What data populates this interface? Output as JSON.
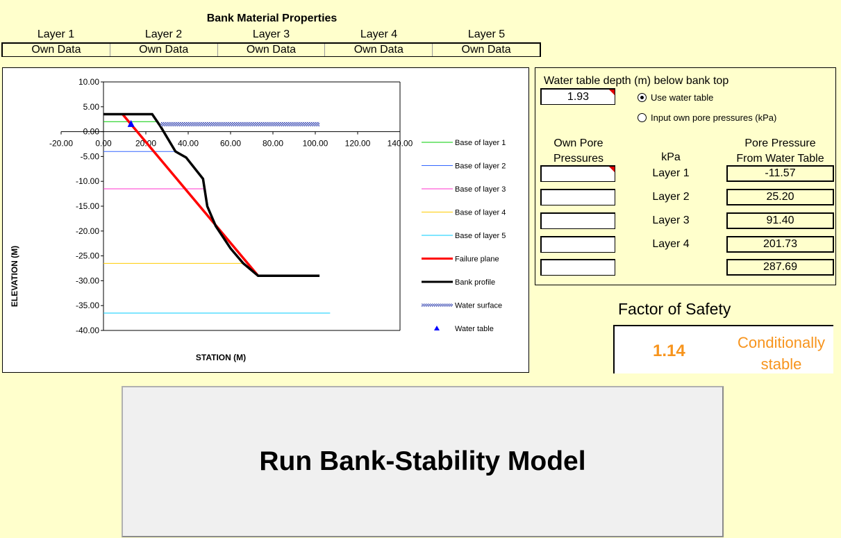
{
  "bank_material": {
    "title": "Bank Material Properties",
    "layers": [
      {
        "name": "Layer 1",
        "value": "Own Data"
      },
      {
        "name": "Layer 2",
        "value": "Own Data"
      },
      {
        "name": "Layer 3",
        "value": "Own Data"
      },
      {
        "name": "Layer 4",
        "value": "Own Data"
      },
      {
        "name": "Layer 5",
        "value": "Own Data"
      }
    ]
  },
  "water_table": {
    "label": "Water table depth (m) below bank top",
    "depth_value": "1.93",
    "options": [
      {
        "label": "Use water table",
        "selected": true
      },
      {
        "label": "Input own pore pressures (kPa)",
        "selected": false
      }
    ],
    "own_pore_header": [
      "Own Pore",
      "Pressures"
    ],
    "kpa_header": "kPa",
    "pore_from_wt_header": [
      "Pore Pressure",
      "From Water Table"
    ],
    "rows": [
      {
        "layer": "Layer 1",
        "own": "",
        "from_wt": "-11.57"
      },
      {
        "layer": "Layer 2",
        "own": "",
        "from_wt": "25.20"
      },
      {
        "layer": "Layer 3",
        "own": "",
        "from_wt": "91.40"
      },
      {
        "layer": "Layer 4",
        "own": "",
        "from_wt": "201.73"
      },
      {
        "layer": "",
        "own": "",
        "from_wt": "287.69"
      }
    ]
  },
  "factor_of_safety": {
    "title": "Factor of Safety",
    "value": "1.14",
    "status": "Conditionally stable",
    "status_color": "#f7941d"
  },
  "run_button": {
    "label": "Run Bank-Stability Model"
  },
  "chart_data": {
    "type": "line",
    "xlabel": "STATION (M)",
    "ylabel": "ELEVATION (M)",
    "xlim": [
      -20,
      140
    ],
    "ylim": [
      -40,
      10
    ],
    "xticks": [
      "-20.00",
      "0.00",
      "20.00",
      "40.00",
      "60.00",
      "80.00",
      "100.00",
      "120.00",
      "140.00"
    ],
    "yticks": [
      "10.00",
      "5.00",
      "0.00",
      "-5.00",
      "-10.00",
      "-15.00",
      "-20.00",
      "-25.00",
      "-30.00",
      "-35.00",
      "-40.00"
    ],
    "legend_position": "right",
    "series": [
      {
        "name": "Base of layer 1",
        "color": "#00cc00",
        "style": "line",
        "x": [
          0,
          26
        ],
        "y": [
          2,
          2
        ]
      },
      {
        "name": "Base of layer 2",
        "color": "#3366ff",
        "style": "line",
        "x": [
          0,
          35
        ],
        "y": [
          -4,
          -4
        ]
      },
      {
        "name": "Base of layer 3",
        "color": "#ff33cc",
        "style": "line",
        "x": [
          0,
          48
        ],
        "y": [
          -11.5,
          -11.5
        ]
      },
      {
        "name": "Base of layer 4",
        "color": "#ffcc00",
        "style": "line",
        "x": [
          0,
          66
        ],
        "y": [
          -26.5,
          -26.5
        ]
      },
      {
        "name": "Base of layer 5",
        "color": "#00ccff",
        "style": "line",
        "x": [
          0,
          107
        ],
        "y": [
          -36.5,
          -36.5
        ]
      },
      {
        "name": "Failure plane",
        "color": "#ff0000",
        "style": "thick",
        "x": [
          9,
          73
        ],
        "y": [
          3.5,
          -29
        ]
      },
      {
        "name": "Bank profile",
        "color": "#000000",
        "style": "thick",
        "x": [
          0,
          23,
          27,
          34,
          39,
          47,
          49,
          53,
          60,
          66,
          73,
          102
        ],
        "y": [
          3.5,
          3.5,
          1,
          -4,
          -5.2,
          -9.5,
          -15,
          -19,
          -23.5,
          -26.5,
          -29,
          -29
        ]
      },
      {
        "name": "Water surface",
        "color": "#2233aa",
        "style": "hatched",
        "x": [
          27,
          102
        ],
        "y": [
          1.5,
          1.5
        ]
      },
      {
        "name": "Water table",
        "color": "#0000ff",
        "style": "marker",
        "x": [
          13
        ],
        "y": [
          1.5
        ]
      }
    ]
  }
}
